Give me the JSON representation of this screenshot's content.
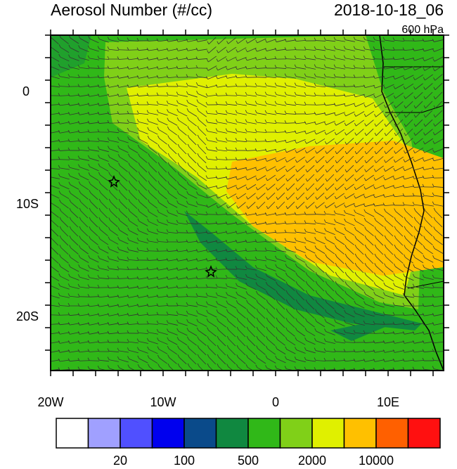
{
  "header": {
    "title": "Aerosol Number (#/cc)",
    "time": "2018-10-18_06",
    "level": "600 hPa"
  },
  "map": {
    "x_labels": [
      "20W",
      "10W",
      "0",
      "10E"
    ],
    "y_labels": [
      "0",
      "10S",
      "20S"
    ]
  },
  "colorbar": {
    "colors": [
      "#ffffff",
      "#a0a0ff",
      "#5050ff",
      "#0000ee",
      "#0a4a8a",
      "#108840",
      "#30b818",
      "#80d018",
      "#e0f000",
      "#ffc000",
      "#ff6000",
      "#ff1010"
    ],
    "labels": [
      "20",
      "100",
      "500",
      "2000",
      "10000"
    ]
  }
}
